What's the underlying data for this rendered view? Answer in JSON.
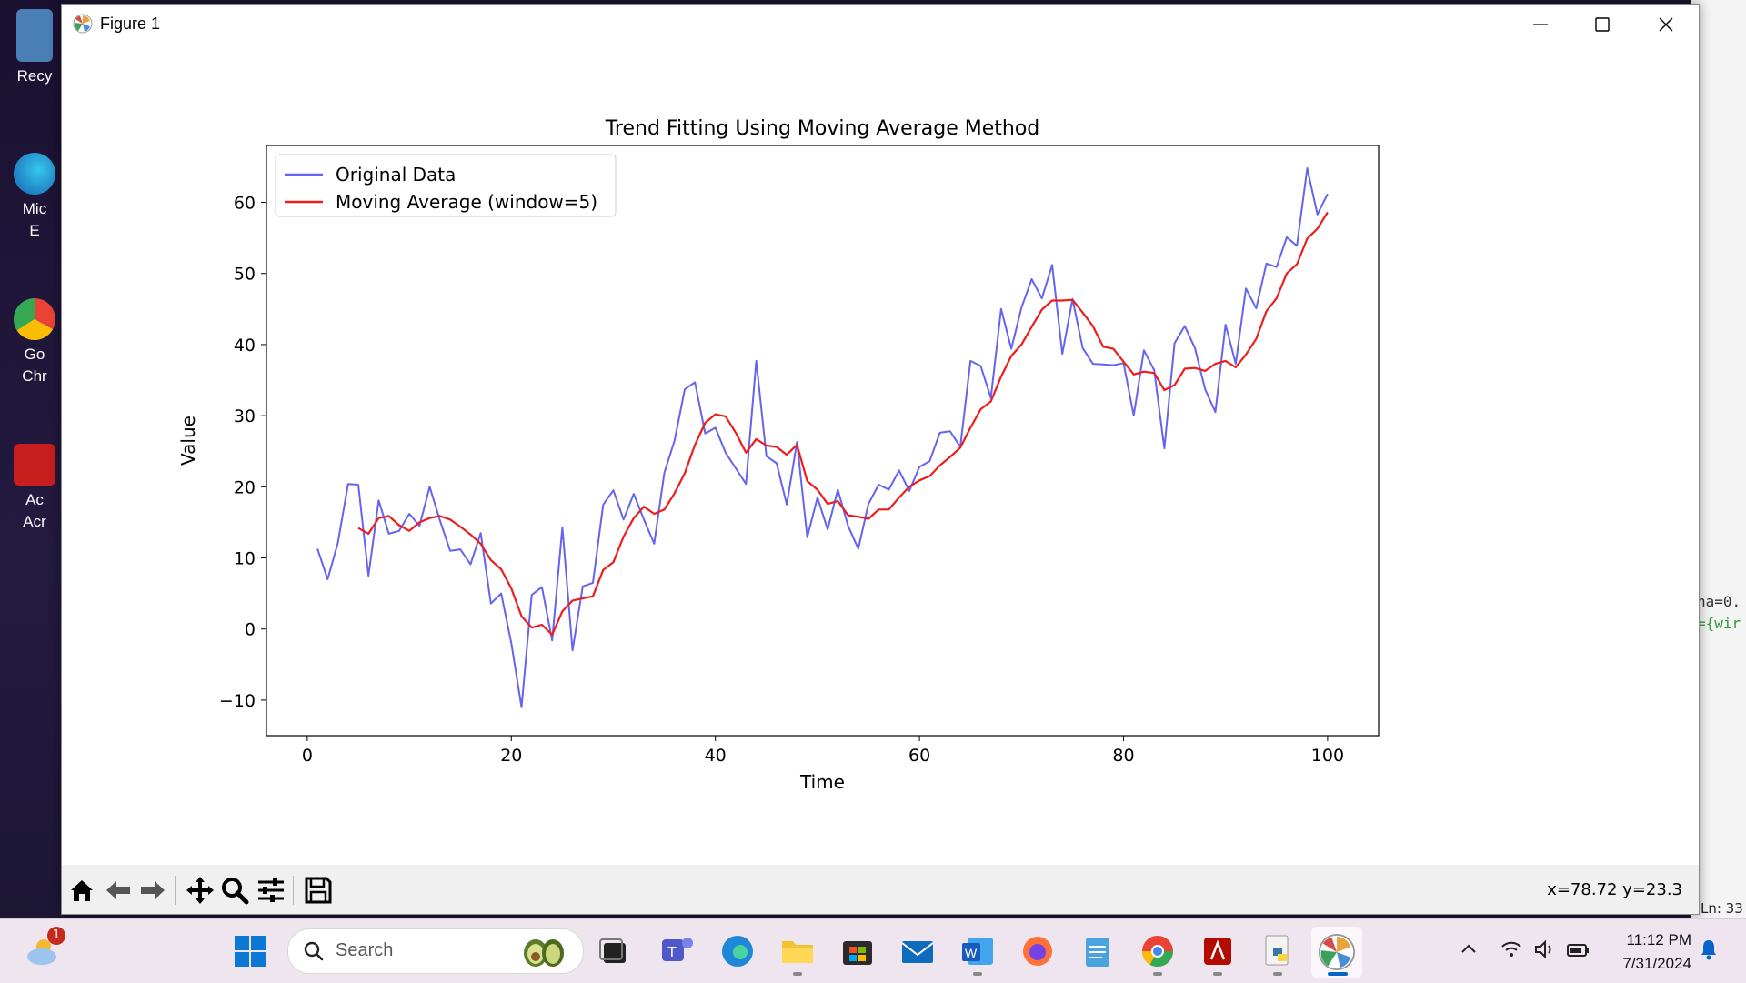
{
  "desktop": {
    "icons": [
      {
        "label": "Recy"
      },
      {
        "label": "Mic\nE"
      },
      {
        "label": "Go\nChr"
      },
      {
        "label": "Ac\nAcr"
      }
    ],
    "back_window": {
      "code_line1": "ha=0.",
      "code_line2": "={wir",
      "status": "Ln: 33"
    }
  },
  "window": {
    "title": "Figure 1",
    "coords": "x=78.72 y=23.3"
  },
  "chart_data": {
    "type": "line",
    "title": "Trend Fitting Using Moving Average Method",
    "xlabel": "Time",
    "ylabel": "Value",
    "xlim": [
      -4,
      105
    ],
    "ylim": [
      -15,
      68
    ],
    "xticks": [
      0,
      20,
      40,
      60,
      80,
      100
    ],
    "yticks": [
      -10,
      0,
      10,
      20,
      30,
      40,
      50,
      60
    ],
    "ytick_labels": [
      "−10",
      "0",
      "10",
      "20",
      "30",
      "40",
      "50",
      "60"
    ],
    "grid": false,
    "legend": "top-left",
    "series": [
      {
        "name": "Original Data",
        "color": "#6464f0",
        "x": [
          1,
          2,
          3,
          4,
          5,
          6,
          7,
          8,
          9,
          10,
          11,
          12,
          13,
          14,
          15,
          16,
          17,
          18,
          19,
          20,
          21,
          22,
          23,
          24,
          25,
          26,
          27,
          28,
          29,
          30,
          31,
          32,
          33,
          34,
          35,
          36,
          37,
          38,
          39,
          40,
          41,
          42,
          43,
          44,
          45,
          46,
          47,
          48,
          49,
          50,
          51,
          52,
          53,
          54,
          55,
          56,
          57,
          58,
          59,
          60,
          61,
          62,
          63,
          64,
          65,
          66,
          67,
          68,
          69,
          70,
          71,
          72,
          73,
          74,
          75,
          76,
          77,
          78,
          79,
          80,
          81,
          82,
          83,
          84,
          85,
          86,
          87,
          88,
          89,
          90,
          91,
          92,
          93,
          94,
          95,
          96,
          97,
          98,
          99,
          100
        ],
        "values": [
          11.3,
          7.0,
          12.1,
          20.4,
          20.3,
          7.5,
          18.1,
          13.4,
          13.8,
          16.2,
          14.5,
          20.0,
          15.3,
          11.0,
          11.2,
          9.1,
          13.5,
          3.6,
          5.0,
          -2.0,
          -11.0,
          4.8,
          5.9,
          -1.6,
          14.3,
          -3.0,
          6.0,
          6.5,
          17.5,
          19.5,
          15.4,
          19.0,
          15.4,
          12.0,
          22.0,
          26.5,
          33.7,
          34.7,
          27.5,
          28.3,
          24.8,
          22.6,
          20.4,
          37.7,
          24.3,
          23.3,
          17.5,
          26.3,
          12.9,
          18.5,
          14.0,
          19.6,
          14.5,
          11.3,
          17.6,
          20.3,
          19.6,
          22.3,
          19.4,
          22.8,
          23.6,
          27.6,
          27.8,
          25.6,
          37.7,
          37.0,
          32.5,
          45.0,
          39.4,
          45.2,
          49.2,
          46.5,
          51.2,
          38.7,
          46.4,
          39.5,
          37.3,
          37.2,
          37.1,
          37.4,
          30.0,
          39.2,
          36.4,
          25.4,
          40.2,
          42.6,
          39.5,
          33.7,
          30.5,
          42.8,
          37.3,
          47.9,
          45.1,
          51.4,
          50.9,
          55.1,
          53.9,
          64.8,
          58.3,
          61.2
        ]
      },
      {
        "name": "Moving Average (window=5)",
        "color": "#ee1c1c",
        "x": [
          5,
          6,
          7,
          8,
          9,
          10,
          11,
          12,
          13,
          14,
          15,
          16,
          17,
          18,
          19,
          20,
          21,
          22,
          23,
          24,
          25,
          26,
          27,
          28,
          29,
          30,
          31,
          32,
          33,
          34,
          35,
          36,
          37,
          38,
          39,
          40,
          41,
          42,
          43,
          44,
          45,
          46,
          47,
          48,
          49,
          50,
          51,
          52,
          53,
          54,
          55,
          56,
          57,
          58,
          59,
          60,
          61,
          62,
          63,
          64,
          65,
          66,
          67,
          68,
          69,
          70,
          71,
          72,
          73,
          74,
          75,
          76,
          77,
          78,
          79,
          80,
          81,
          82,
          83,
          84,
          85,
          86,
          87,
          88,
          89,
          90,
          91,
          92,
          93,
          94,
          95,
          96,
          97,
          98,
          99,
          100
        ],
        "values": [
          14.2,
          13.4,
          15.6,
          15.9,
          14.6,
          13.8,
          15.0,
          15.6,
          15.9,
          15.4,
          14.4,
          13.3,
          12.0,
          9.7,
          8.4,
          5.7,
          1.8,
          0.2,
          0.6,
          -0.8,
          2.5,
          4.0,
          4.3,
          4.6,
          8.3,
          9.4,
          13.0,
          15.6,
          17.2,
          16.2,
          16.8,
          19.1,
          21.9,
          25.9,
          29.0,
          30.2,
          29.9,
          27.6,
          24.8,
          26.7,
          25.8,
          25.6,
          24.5,
          25.9,
          20.8,
          19.6,
          17.6,
          18.0,
          16.0,
          15.8,
          15.5,
          16.8,
          16.8,
          18.5,
          20.0,
          20.9,
          21.5,
          23.0,
          24.2,
          25.5,
          28.3,
          30.9,
          32.0,
          35.5,
          38.4,
          40.0,
          42.5,
          44.9,
          46.2,
          46.2,
          46.3,
          44.5,
          42.6,
          39.7,
          39.4,
          37.6,
          35.8,
          36.2,
          36.0,
          33.6,
          34.3,
          36.6,
          36.7,
          36.3,
          37.3,
          37.7,
          36.8,
          38.6,
          40.8,
          44.7,
          46.5,
          50.0,
          51.3,
          54.9,
          56.3,
          58.6
        ]
      }
    ]
  },
  "taskbar": {
    "weather_badge": "1",
    "search_placeholder": "Search",
    "clock_time": "11:12 PM",
    "clock_date": "7/31/2024"
  }
}
